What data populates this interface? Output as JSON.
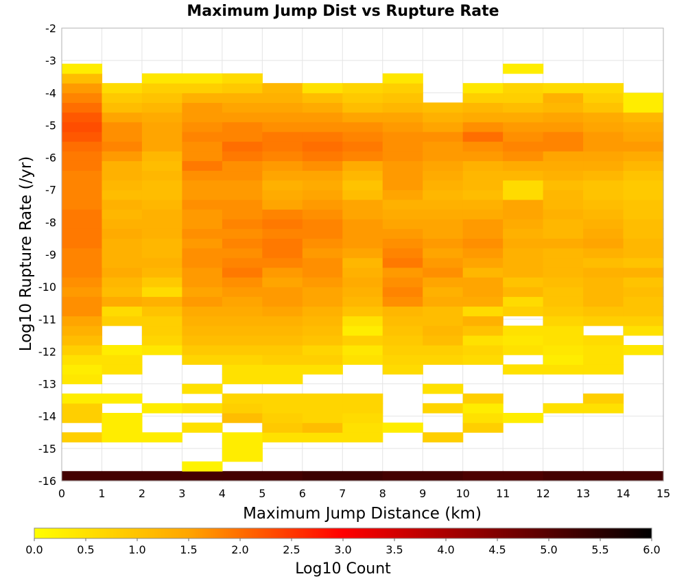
{
  "chart_data": {
    "type": "heatmap",
    "title": "Maximum Jump Dist vs Rupture Rate",
    "xlabel": "Maximum Jump Distance (km)",
    "ylabel": "Log10 Rupture Rate (/yr)",
    "xlim": [
      0,
      15
    ],
    "ylim": [
      -16,
      -2
    ],
    "x_ticks": [
      "0",
      "1",
      "2",
      "3",
      "4",
      "5",
      "6",
      "7",
      "8",
      "9",
      "10",
      "11",
      "12",
      "13",
      "14",
      "15"
    ],
    "y_ticks": [
      "-2",
      "-3",
      "-4",
      "-5",
      "-6",
      "-7",
      "-8",
      "-9",
      "-10",
      "-11",
      "-12",
      "-13",
      "-14",
      "-15",
      "-16"
    ],
    "grid": true,
    "x_bin_width": 1,
    "y_bin_height": 0.3,
    "y_start": -16,
    "rows": [
      {
        "y": -15.85,
        "v": [
          5.2,
          5.2,
          5.2,
          5.2,
          5.2,
          5.2,
          5.3,
          5.3,
          5.2,
          5.2,
          5.1,
          5.1,
          5.2,
          5.2,
          5.2
        ]
      },
      {
        "y": -15.55,
        "v": [
          null,
          null,
          null,
          0.2,
          null,
          null,
          null,
          null,
          null,
          null,
          null,
          null,
          null,
          null,
          null
        ]
      },
      {
        "y": -15.25,
        "v": [
          null,
          null,
          null,
          null,
          0.3,
          null,
          null,
          null,
          null,
          null,
          null,
          null,
          null,
          null,
          null
        ]
      },
      {
        "y": -14.95,
        "v": [
          null,
          null,
          null,
          null,
          0.3,
          null,
          null,
          null,
          null,
          null,
          null,
          null,
          null,
          null,
          null
        ]
      },
      {
        "y": -14.65,
        "v": [
          0.8,
          0.3,
          0.3,
          null,
          0.3,
          0.5,
          0.5,
          0.5,
          null,
          0.8,
          null,
          null,
          null,
          null,
          null
        ]
      },
      {
        "y": -14.35,
        "v": [
          null,
          0.3,
          null,
          0.5,
          null,
          0.9,
          1.1,
          0.5,
          0.3,
          null,
          0.8,
          null,
          null,
          null,
          null
        ]
      },
      {
        "y": -14.05,
        "v": [
          0.8,
          0.3,
          null,
          null,
          1.1,
          0.8,
          0.7,
          0.6,
          null,
          null,
          0.5,
          0.3,
          null,
          null,
          null
        ]
      },
      {
        "y": -13.75,
        "v": [
          0.8,
          null,
          0.3,
          0.5,
          0.8,
          0.7,
          0.7,
          0.7,
          null,
          0.7,
          0.3,
          null,
          0.5,
          0.5,
          null
        ]
      },
      {
        "y": -13.45,
        "v": [
          0.3,
          0.3,
          null,
          null,
          0.7,
          0.7,
          0.7,
          0.7,
          null,
          null,
          0.8,
          null,
          null,
          0.8,
          null
        ]
      },
      {
        "y": -13.15,
        "v": [
          null,
          null,
          null,
          0.5,
          null,
          null,
          null,
          null,
          null,
          0.5,
          null,
          null,
          null,
          null,
          null
        ]
      },
      {
        "y": -12.85,
        "v": [
          0.4,
          null,
          null,
          null,
          0.5,
          0.5,
          null,
          null,
          null,
          null,
          null,
          null,
          null,
          null,
          null
        ]
      },
      {
        "y": -12.55,
        "v": [
          0.3,
          0.5,
          null,
          null,
          0.5,
          0.5,
          0.5,
          null,
          0.6,
          null,
          null,
          0.5,
          0.5,
          0.5,
          null
        ]
      },
      {
        "y": -12.25,
        "v": [
          0.5,
          0.5,
          null,
          0.7,
          0.7,
          0.8,
          0.8,
          0.5,
          0.7,
          0.7,
          0.6,
          null,
          0.3,
          0.5,
          null
        ]
      },
      {
        "y": -11.95,
        "v": [
          0.8,
          0.3,
          0.4,
          0.9,
          0.9,
          0.9,
          0.7,
          0.4,
          0.8,
          0.8,
          0.7,
          0.5,
          0.4,
          0.5,
          0.4
        ]
      },
      {
        "y": -11.65,
        "v": [
          1.1,
          null,
          0.7,
          1.1,
          1.1,
          1.1,
          1.0,
          0.8,
          0.9,
          1.1,
          0.5,
          0.4,
          0.5,
          0.6,
          null
        ]
      },
      {
        "y": -11.35,
        "v": [
          1.3,
          null,
          0.8,
          1.2,
          1.2,
          1.2,
          1.1,
          0.3,
          1.0,
          1.2,
          1.0,
          0.5,
          0.5,
          null,
          0.5
        ]
      },
      {
        "y": -11.05,
        "v": [
          1.5,
          0.8,
          0.8,
          1.3,
          1.3,
          1.3,
          1.2,
          0.5,
          1.1,
          1.1,
          1.3,
          null,
          0.7,
          0.8,
          0.8
        ]
      },
      {
        "y": -10.75,
        "v": [
          1.7,
          0.6,
          1.0,
          1.4,
          1.4,
          1.5,
          1.3,
          1.0,
          1.2,
          1.1,
          0.6,
          0.8,
          0.9,
          1.0,
          1.0
        ]
      },
      {
        "y": -10.45,
        "v": [
          1.7,
          1.4,
          1.3,
          1.6,
          1.5,
          1.6,
          1.5,
          1.2,
          1.7,
          1.4,
          1.4,
          0.6,
          1.0,
          1.2,
          1.0
        ]
      },
      {
        "y": -10.15,
        "v": [
          1.6,
          1.1,
          0.6,
          1.5,
          1.6,
          1.6,
          1.5,
          1.3,
          1.8,
          1.3,
          1.5,
          1.2,
          1.0,
          1.2,
          1.1
        ]
      },
      {
        "y": -9.85,
        "v": [
          1.7,
          1.2,
          0.9,
          1.6,
          1.7,
          1.5,
          1.6,
          1.4,
          1.7,
          1.5,
          1.5,
          1.0,
          1.1,
          1.2,
          1.0
        ]
      },
      {
        "y": -9.55,
        "v": [
          1.8,
          1.4,
          1.2,
          1.6,
          1.9,
          1.6,
          1.7,
          1.3,
          1.6,
          1.7,
          1.2,
          1.3,
          1.2,
          1.3,
          1.3
        ]
      },
      {
        "y": -9.25,
        "v": [
          1.8,
          1.3,
          1.3,
          1.7,
          1.8,
          1.8,
          1.7,
          1.2,
          1.9,
          1.6,
          1.5,
          1.3,
          1.2,
          1.1,
          1.0
        ]
      },
      {
        "y": -8.95,
        "v": [
          1.8,
          1.3,
          1.2,
          1.7,
          1.7,
          1.9,
          1.6,
          1.5,
          1.8,
          1.5,
          1.6,
          1.3,
          1.2,
          1.3,
          1.2
        ]
      },
      {
        "y": -8.65,
        "v": [
          1.9,
          1.3,
          1.2,
          1.6,
          1.8,
          1.9,
          1.7,
          1.6,
          1.7,
          1.6,
          1.7,
          1.4,
          1.4,
          1.5,
          1.2
        ]
      },
      {
        "y": -8.35,
        "v": [
          1.9,
          1.4,
          1.3,
          1.7,
          1.7,
          1.8,
          1.8,
          1.6,
          1.6,
          1.5,
          1.6,
          1.3,
          1.2,
          1.4,
          1.1
        ]
      },
      {
        "y": -8.05,
        "v": [
          1.9,
          1.3,
          1.3,
          1.6,
          1.8,
          1.9,
          1.8,
          1.6,
          1.5,
          1.5,
          1.6,
          1.4,
          1.2,
          1.3,
          1.1
        ]
      },
      {
        "y": -7.75,
        "v": [
          1.9,
          1.2,
          1.3,
          1.6,
          1.7,
          1.8,
          1.7,
          1.5,
          1.4,
          1.4,
          1.4,
          1.5,
          1.3,
          1.2,
          1.0
        ]
      },
      {
        "y": -7.45,
        "v": [
          1.8,
          1.3,
          1.2,
          1.7,
          1.7,
          1.5,
          1.6,
          1.5,
          1.3,
          1.3,
          1.3,
          1.5,
          1.2,
          1.1,
          1.0
        ]
      },
      {
        "y": -7.15,
        "v": [
          1.8,
          1.1,
          1.1,
          1.6,
          1.6,
          1.4,
          1.5,
          1.1,
          1.5,
          1.2,
          1.1,
          0.6,
          1.2,
          1.0,
          0.9
        ]
      },
      {
        "y": -6.85,
        "v": [
          1.8,
          1.2,
          1.1,
          1.6,
          1.6,
          1.3,
          1.4,
          1.0,
          1.6,
          1.3,
          1.2,
          0.6,
          1.1,
          1.0,
          0.9
        ]
      },
      {
        "y": -6.55,
        "v": [
          1.8,
          1.3,
          1.2,
          1.7,
          1.7,
          1.5,
          1.5,
          1.2,
          1.6,
          1.4,
          1.2,
          1.2,
          1.3,
          1.2,
          1.0
        ]
      },
      {
        "y": -6.25,
        "v": [
          1.9,
          1.3,
          1.1,
          1.9,
          1.7,
          1.6,
          1.7,
          1.4,
          1.6,
          1.5,
          1.3,
          1.4,
          1.4,
          1.4,
          1.2
        ]
      },
      {
        "y": -5.95,
        "v": [
          1.9,
          1.6,
          1.2,
          1.7,
          1.9,
          1.8,
          1.9,
          1.8,
          1.7,
          1.6,
          1.6,
          1.7,
          1.5,
          1.5,
          1.4
        ]
      },
      {
        "y": -5.65,
        "v": [
          2.0,
          1.8,
          1.5,
          1.7,
          2.0,
          1.9,
          2.0,
          1.9,
          1.7,
          1.6,
          1.7,
          1.8,
          1.8,
          1.6,
          1.6
        ]
      },
      {
        "y": -5.35,
        "v": [
          2.2,
          1.7,
          1.5,
          1.8,
          1.8,
          1.9,
          1.9,
          1.8,
          1.7,
          1.7,
          2.0,
          1.7,
          1.8,
          1.6,
          1.5
        ]
      },
      {
        "y": -5.05,
        "v": [
          2.3,
          1.7,
          1.5,
          1.7,
          1.8,
          1.7,
          1.7,
          1.7,
          1.6,
          1.5,
          1.7,
          1.6,
          1.6,
          1.5,
          1.4
        ]
      },
      {
        "y": -4.75,
        "v": [
          2.2,
          1.5,
          1.4,
          1.6,
          1.6,
          1.6,
          1.6,
          1.5,
          1.5,
          1.3,
          1.4,
          1.4,
          1.5,
          1.4,
          1.2
        ]
      },
      {
        "y": -4.45,
        "v": [
          2.0,
          1.1,
          1.2,
          1.6,
          1.5,
          1.5,
          1.4,
          1.1,
          1.2,
          1.1,
          1.2,
          1.1,
          1.2,
          1.0,
          0.3
        ]
      },
      {
        "y": -4.15,
        "v": [
          1.8,
          0.9,
          1.0,
          1.3,
          1.3,
          1.3,
          1.1,
          0.9,
          1.0,
          null,
          0.8,
          0.8,
          1.3,
          0.8,
          0.3
        ]
      },
      {
        "y": -3.85,
        "v": [
          1.6,
          0.6,
          0.8,
          0.8,
          0.9,
          1.2,
          0.5,
          0.7,
          0.8,
          null,
          0.4,
          0.7,
          0.6,
          0.6,
          null
        ]
      },
      {
        "y": -3.55,
        "v": [
          1.1,
          null,
          0.4,
          0.4,
          0.6,
          null,
          null,
          null,
          0.4,
          null,
          null,
          null,
          null,
          null,
          null
        ]
      },
      {
        "y": -3.25,
        "v": [
          0.3,
          null,
          null,
          null,
          null,
          null,
          null,
          null,
          null,
          null,
          null,
          0.3,
          null,
          null,
          null
        ]
      }
    ],
    "colorbar": {
      "label": "Log10 Count",
      "min": 0,
      "max": 6,
      "ticks": [
        "0.0",
        "0.5",
        "1.0",
        "1.5",
        "2.0",
        "2.5",
        "3.0",
        "3.5",
        "4.0",
        "4.5",
        "5.0",
        "5.5",
        "6.0"
      ],
      "colors": [
        "#ffff00",
        "#ffa500",
        "#ff0000",
        "#000000"
      ]
    }
  }
}
